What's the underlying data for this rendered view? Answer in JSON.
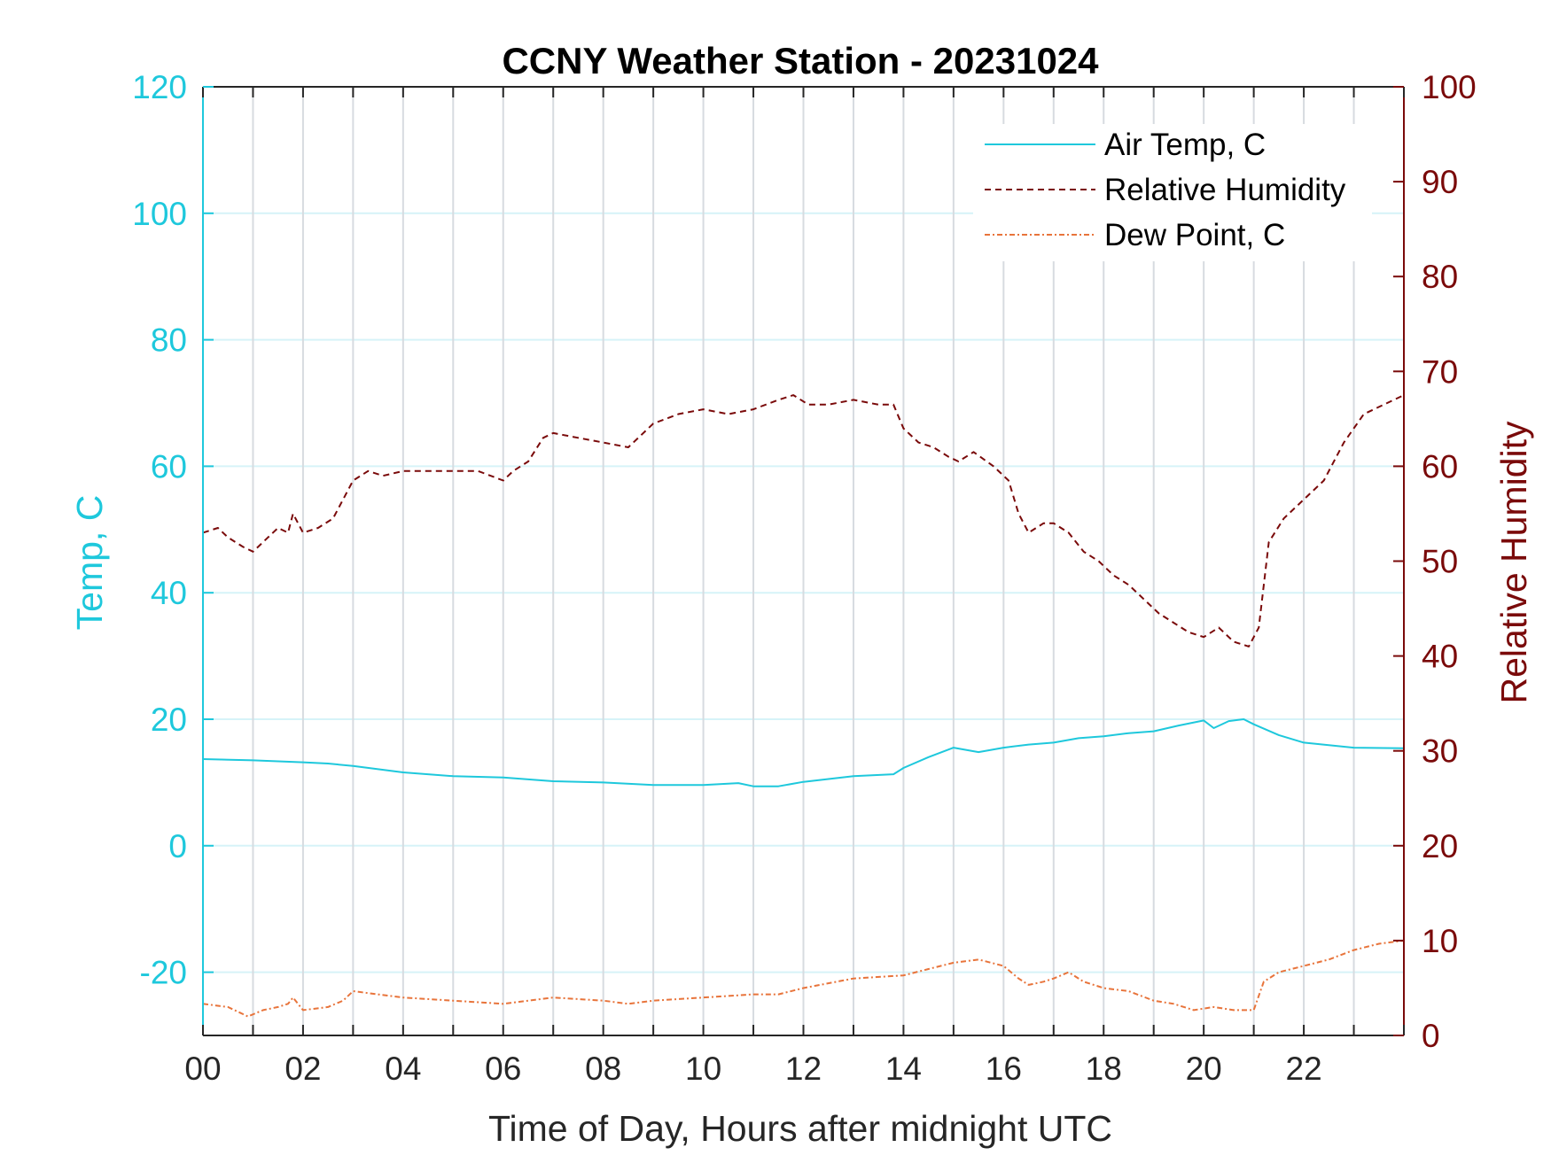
{
  "chart_data": {
    "type": "line",
    "title": "CCNY Weather Station - 20231024",
    "xlabel": "Time of Day, Hours after midnight UTC",
    "ylabel_left": "Temp, C",
    "ylabel_right": "Relative Humidity",
    "xlim": [
      0,
      24
    ],
    "ylim_left": [
      -30,
      120
    ],
    "ylim_right": [
      0,
      100
    ],
    "x_ticks": [
      0,
      2,
      4,
      6,
      8,
      10,
      12,
      14,
      16,
      18,
      20,
      22
    ],
    "x_tick_labels": [
      "00",
      "02",
      "04",
      "06",
      "08",
      "10",
      "12",
      "14",
      "16",
      "18",
      "20",
      "22"
    ],
    "y_left_ticks": [
      -20,
      0,
      20,
      40,
      60,
      80,
      100,
      120
    ],
    "y_right_ticks": [
      0,
      10,
      20,
      30,
      40,
      50,
      60,
      70,
      80,
      90,
      100
    ],
    "grid": true,
    "legend_position": "top-right",
    "colors": {
      "temp": "#1ec8dc",
      "rh": "#7a0a0a",
      "dew": "#e8743b",
      "grid_vertical": "#d7dbe0",
      "grid_horizontal": "#d6f3f8"
    },
    "series": [
      {
        "name": "Air Temp, C",
        "axis": "left",
        "style": "solid",
        "x": [
          0,
          1,
          2,
          2.5,
          3,
          4,
          5,
          6,
          7,
          8,
          9,
          10,
          10.7,
          11,
          11.5,
          12,
          13,
          13.8,
          14,
          14.5,
          15,
          15.5,
          16,
          16.5,
          17,
          17.5,
          18,
          18.5,
          19,
          19.5,
          20,
          20.2,
          20.5,
          20.8,
          21,
          21.5,
          22,
          23,
          24
        ],
        "y": [
          13.7,
          13.5,
          13.2,
          13.0,
          12.6,
          11.6,
          11.0,
          10.8,
          10.2,
          10.0,
          9.6,
          9.6,
          9.9,
          9.4,
          9.4,
          10.1,
          11.0,
          11.3,
          12.3,
          14.0,
          15.5,
          14.8,
          15.5,
          16.0,
          16.3,
          17.0,
          17.3,
          17.8,
          18.1,
          19.0,
          19.8,
          18.6,
          19.7,
          20.0,
          19.2,
          17.5,
          16.3,
          15.5,
          15.4
        ]
      },
      {
        "name": "Relative Humidity",
        "axis": "right",
        "style": "dashed",
        "x": [
          0,
          0.3,
          0.5,
          0.8,
          1.0,
          1.3,
          1.5,
          1.7,
          1.8,
          2.0,
          2.3,
          2.6,
          2.8,
          3.0,
          3.3,
          3.6,
          4.0,
          4.5,
          5.0,
          5.5,
          6.0,
          6.2,
          6.5,
          6.8,
          7.0,
          7.5,
          8.0,
          8.5,
          9.0,
          9.5,
          10.0,
          10.5,
          11.0,
          11.5,
          11.8,
          12.1,
          12.5,
          13.0,
          13.5,
          13.8,
          14.0,
          14.3,
          14.6,
          14.9,
          15.1,
          15.4,
          15.8,
          16.1,
          16.3,
          16.5,
          16.8,
          17.0,
          17.3,
          17.6,
          17.9,
          18.2,
          18.5,
          18.8,
          19.1,
          19.4,
          19.7,
          20.0,
          20.3,
          20.6,
          20.9,
          21.1,
          21.3,
          21.6,
          22.0,
          22.4,
          22.8,
          23.2,
          23.6,
          24.0
        ],
        "y": [
          53,
          53.5,
          52.5,
          51.5,
          51,
          52.5,
          53.5,
          53,
          55,
          53,
          53.5,
          54.5,
          56.5,
          58.5,
          59.5,
          59,
          59.5,
          59.5,
          59.5,
          59.5,
          58.5,
          59.5,
          60.5,
          63,
          63.5,
          63,
          62.5,
          62,
          64.5,
          65.5,
          66,
          65.5,
          66,
          67,
          67.5,
          66.5,
          66.5,
          67,
          66.5,
          66.5,
          64,
          62.5,
          62,
          61,
          60.5,
          61.5,
          60,
          58.5,
          55,
          53,
          54,
          54,
          53,
          51,
          50,
          48.5,
          47.5,
          46,
          44.5,
          43.5,
          42.5,
          42,
          43,
          41.5,
          41,
          43,
          52,
          54.5,
          56.5,
          58.5,
          62.5,
          65.5,
          66.5,
          67.5
        ]
      },
      {
        "name": "Dew Point, C",
        "axis": "left",
        "style": "dash-dot",
        "x": [
          0,
          0.5,
          0.9,
          1.2,
          1.5,
          1.7,
          1.8,
          2.0,
          2.5,
          2.8,
          3.0,
          3.5,
          4.0,
          5.0,
          6.0,
          6.5,
          7.0,
          8.0,
          8.5,
          9.0,
          10.0,
          11.0,
          11.5,
          12.0,
          13.0,
          14.0,
          14.5,
          15.0,
          15.5,
          16.0,
          16.3,
          16.5,
          16.8,
          17.0,
          17.3,
          17.6,
          18.0,
          18.5,
          19.0,
          19.4,
          19.8,
          20.2,
          20.6,
          21.0,
          21.2,
          21.5,
          22.0,
          22.5,
          23.0,
          23.5,
          24.0
        ],
        "y": [
          -25,
          -25.5,
          -27,
          -26,
          -25.5,
          -25,
          -24,
          -26,
          -25.5,
          -24.5,
          -23,
          -23.5,
          -24,
          -24.5,
          -25,
          -24.5,
          -24,
          -24.5,
          -25,
          -24.5,
          -24,
          -23.5,
          -23.5,
          -22.5,
          -21,
          -20.5,
          -19.5,
          -18.5,
          -18,
          -19,
          -21,
          -22,
          -21.5,
          -21,
          -20,
          -21.5,
          -22.5,
          -23,
          -24.5,
          -25,
          -26,
          -25.5,
          -26,
          -26,
          -21.5,
          -20,
          -19,
          -18,
          -16.5,
          -15.5,
          -15
        ]
      }
    ]
  }
}
